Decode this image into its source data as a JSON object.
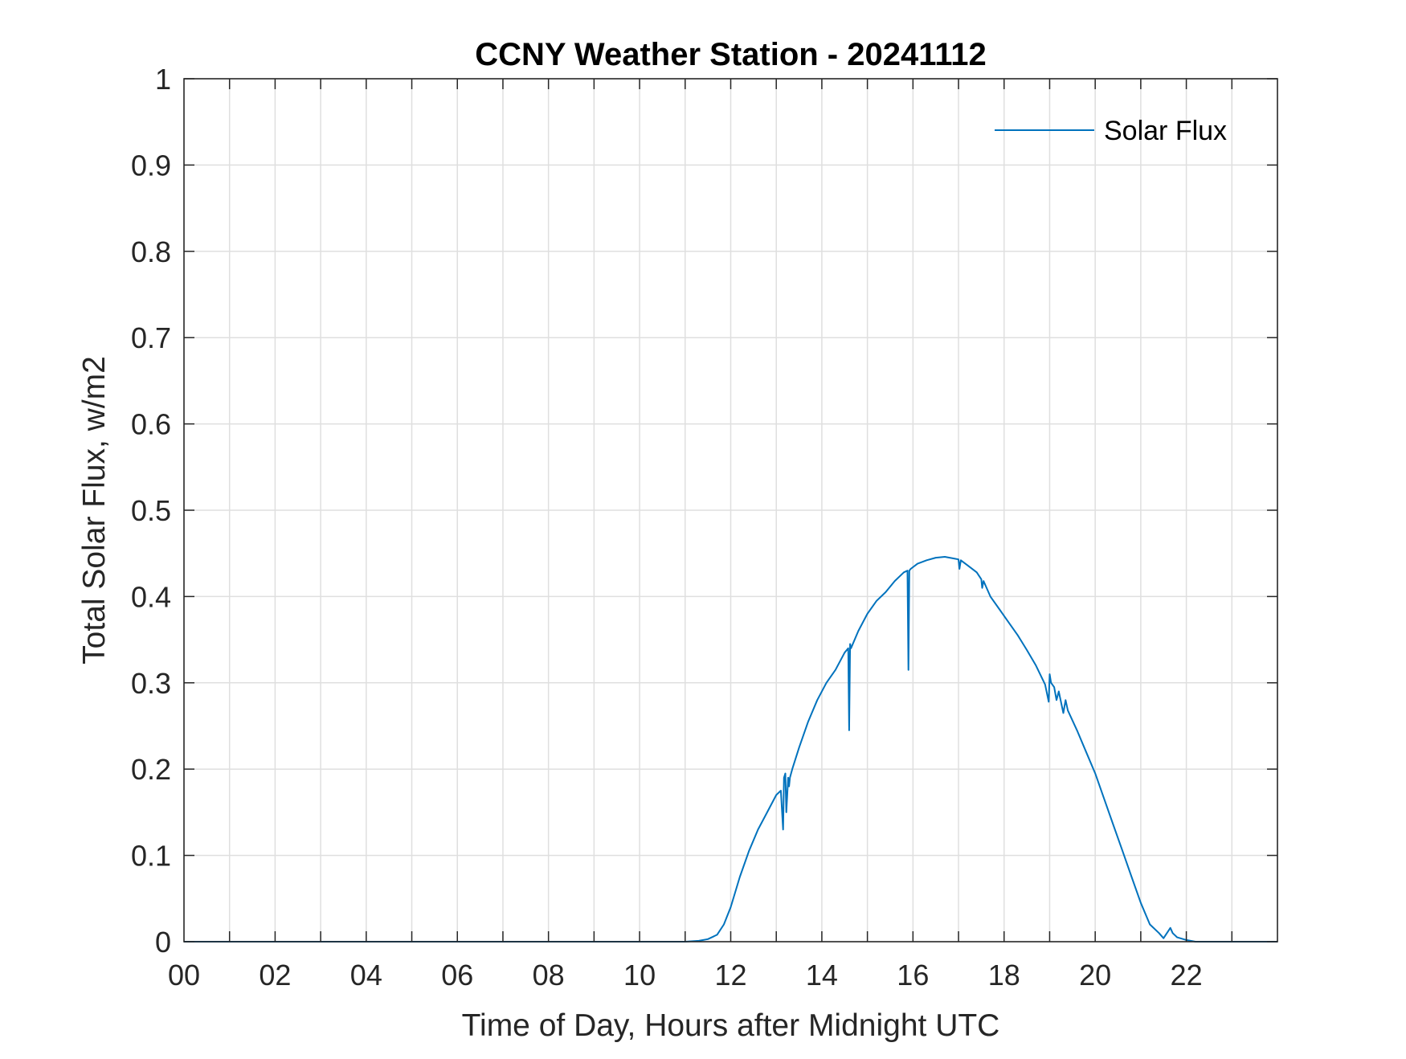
{
  "chart_data": {
    "type": "line",
    "title": "CCNY Weather Station - 20241112",
    "xlabel": "Time of Day, Hours after Midnight UTC",
    "ylabel": "Total Solar Flux, w/m2",
    "xlim": [
      0,
      24
    ],
    "ylim": [
      0,
      1
    ],
    "grid": true,
    "legend": {
      "position": "top-right",
      "entries": [
        "Solar Flux"
      ]
    },
    "x_ticks": [
      0,
      2,
      4,
      6,
      8,
      10,
      12,
      14,
      16,
      18,
      20,
      22
    ],
    "x_tick_labels": [
      "00",
      "02",
      "04",
      "06",
      "08",
      "10",
      "12",
      "14",
      "16",
      "18",
      "20",
      "22"
    ],
    "x_minor_grid_step": 1,
    "y_ticks": [
      0,
      0.1,
      0.2,
      0.3,
      0.4,
      0.5,
      0.6,
      0.7,
      0.8,
      0.9,
      1
    ],
    "y_tick_labels": [
      "0",
      "0.1",
      "0.2",
      "0.3",
      "0.4",
      "0.5",
      "0.6",
      "0.7",
      "0.8",
      "0.9",
      "1"
    ],
    "series": [
      {
        "name": "Solar Flux",
        "color": "#0072BD",
        "x": [
          0,
          11.0,
          11.3,
          11.5,
          11.7,
          11.85,
          12.0,
          12.2,
          12.4,
          12.6,
          12.8,
          13.0,
          13.1,
          13.15,
          13.17,
          13.2,
          13.22,
          13.26,
          13.28,
          13.3,
          13.35,
          13.5,
          13.7,
          13.9,
          14.1,
          14.3,
          14.5,
          14.58,
          14.6,
          14.62,
          14.64,
          14.8,
          15.0,
          15.2,
          15.4,
          15.6,
          15.8,
          15.88,
          15.9,
          15.92,
          15.95,
          16.1,
          16.3,
          16.5,
          16.7,
          16.9,
          17.0,
          17.02,
          17.05,
          17.2,
          17.4,
          17.5,
          17.52,
          17.55,
          17.7,
          17.9,
          18.1,
          18.3,
          18.5,
          18.7,
          18.9,
          18.98,
          19.0,
          19.03,
          19.1,
          19.15,
          19.2,
          19.3,
          19.35,
          19.4,
          19.6,
          19.8,
          20.0,
          20.2,
          20.4,
          20.6,
          20.8,
          21.0,
          21.2,
          21.4,
          21.5,
          21.6,
          21.65,
          21.7,
          21.8,
          22.0,
          22.2,
          22.5,
          24
        ],
        "y": [
          0,
          0,
          0.001,
          0.003,
          0.008,
          0.02,
          0.04,
          0.075,
          0.105,
          0.13,
          0.15,
          0.17,
          0.175,
          0.13,
          0.19,
          0.195,
          0.15,
          0.19,
          0.18,
          0.19,
          0.2,
          0.225,
          0.255,
          0.28,
          0.3,
          0.315,
          0.335,
          0.34,
          0.245,
          0.345,
          0.34,
          0.36,
          0.38,
          0.395,
          0.405,
          0.418,
          0.428,
          0.43,
          0.315,
          0.43,
          0.432,
          0.438,
          0.442,
          0.445,
          0.446,
          0.444,
          0.443,
          0.432,
          0.442,
          0.436,
          0.428,
          0.42,
          0.41,
          0.418,
          0.4,
          0.385,
          0.37,
          0.355,
          0.338,
          0.32,
          0.298,
          0.278,
          0.31,
          0.3,
          0.295,
          0.28,
          0.29,
          0.265,
          0.28,
          0.268,
          0.245,
          0.22,
          0.195,
          0.165,
          0.135,
          0.105,
          0.075,
          0.045,
          0.02,
          0.01,
          0.004,
          0.012,
          0.016,
          0.01,
          0.005,
          0.002,
          0,
          0,
          0
        ]
      }
    ]
  }
}
